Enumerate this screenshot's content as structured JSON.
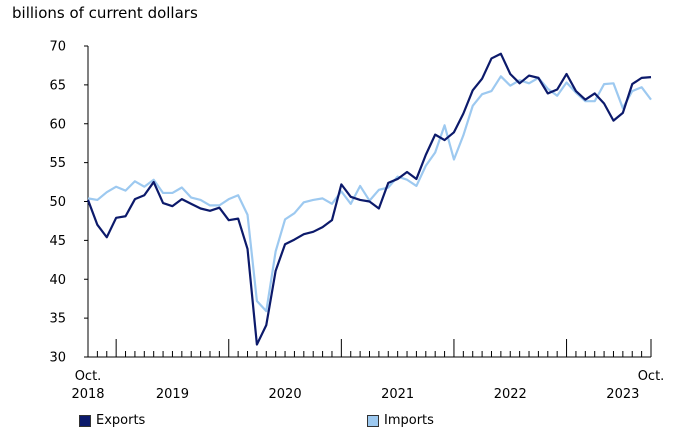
{
  "chart_data": {
    "type": "line",
    "title": "",
    "ylabel": "billions of current dollars",
    "xlabel": "",
    "ylim": [
      30,
      70
    ],
    "yticks": [
      30,
      35,
      40,
      45,
      50,
      55,
      60,
      65,
      70
    ],
    "grid": false,
    "legend_position": "bottom",
    "x_start": "2018-10",
    "x_end": "2023-10",
    "x_tick_labels": [
      {
        "month_index": 0,
        "lines": [
          "Oct.",
          "2018"
        ]
      },
      {
        "month_index": 9,
        "lines": [
          "",
          "2019"
        ]
      },
      {
        "month_index": 21,
        "lines": [
          "",
          "2020"
        ]
      },
      {
        "month_index": 33,
        "lines": [
          "",
          "2021"
        ]
      },
      {
        "month_index": 45,
        "lines": [
          "",
          "2022"
        ]
      },
      {
        "month_index": 57,
        "lines": [
          "",
          "2023"
        ]
      },
      {
        "month_index": 60,
        "lines": [
          "Oct.",
          ""
        ]
      }
    ],
    "series": [
      {
        "name": "Exports",
        "color": "#0c1a6b",
        "values": [
          50.2,
          47.0,
          45.4,
          47.9,
          48.1,
          50.3,
          50.8,
          52.5,
          49.8,
          49.4,
          50.3,
          49.7,
          49.1,
          48.8,
          49.2,
          47.6,
          47.8,
          43.9,
          31.6,
          34.1,
          41.1,
          44.5,
          45.1,
          45.8,
          46.1,
          46.7,
          47.6,
          52.2,
          50.6,
          50.2,
          50.0,
          49.1,
          52.4,
          52.9,
          53.8,
          52.9,
          56.0,
          58.6,
          57.9,
          58.9,
          61.3,
          64.3,
          65.8,
          68.4,
          69.0,
          66.4,
          65.2,
          66.2,
          65.9,
          63.9,
          64.4,
          66.4,
          64.2,
          63.1,
          63.9,
          62.6,
          60.4,
          61.4,
          65.1,
          65.9,
          66.0
        ]
      },
      {
        "name": "Imports",
        "color": "#9dc9f0",
        "values": [
          50.4,
          50.2,
          51.2,
          51.9,
          51.4,
          52.6,
          51.9,
          52.8,
          51.1,
          51.1,
          51.8,
          50.5,
          50.2,
          49.5,
          49.5,
          50.3,
          50.8,
          48.3,
          37.2,
          35.9,
          43.6,
          47.7,
          48.5,
          49.9,
          50.2,
          50.4,
          49.7,
          51.3,
          49.7,
          52.0,
          50.1,
          51.5,
          51.8,
          53.2,
          52.8,
          52.0,
          54.6,
          56.3,
          59.8,
          55.4,
          58.5,
          62.3,
          63.8,
          64.2,
          66.1,
          64.9,
          65.6,
          65.2,
          65.9,
          64.5,
          63.6,
          65.3,
          64.0,
          62.9,
          62.9,
          65.1,
          65.2,
          62.0,
          64.2,
          64.7,
          63.1
        ]
      }
    ]
  }
}
